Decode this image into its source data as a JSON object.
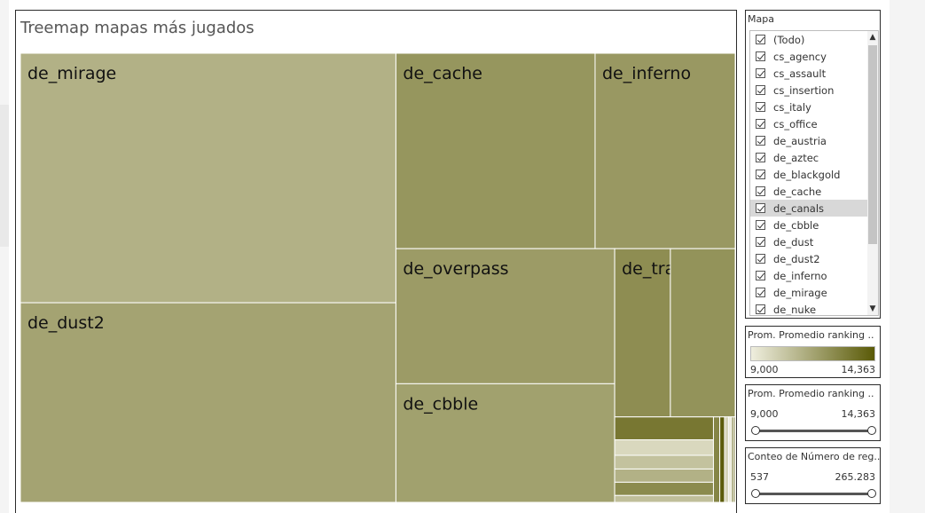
{
  "title": "Treemap mapas más jugados",
  "chart_data": {
    "type": "treemap",
    "title": "Treemap mapas más jugados",
    "size_measure": "Conteo de Número de registros",
    "color_measure": "Prom. Promedio ranking",
    "color_range": [
      9000,
      14363
    ],
    "labeled_items": [
      {
        "name": "de_mirage",
        "count": 65000,
        "avg_ranking": 11200
      },
      {
        "name": "de_dust2",
        "count": 52000,
        "avg_ranking": 11700
      },
      {
        "name": "de_cache",
        "count": 27000,
        "avg_ranking": 12200
      },
      {
        "name": "de_inferno",
        "count": 19000,
        "avg_ranking": 12100
      },
      {
        "name": "de_overpass",
        "count": 20500,
        "avg_ranking": 12000
      },
      {
        "name": "de_cbble",
        "count": 18000,
        "avg_ranking": 11800
      },
      {
        "name": "de_train",
        "count": 6500,
        "avg_ranking": 12500
      }
    ],
    "unlabeled_items": [
      {
        "count": 3300,
        "avg_ranking": 12300
      },
      {
        "count": 2500,
        "avg_ranking": 13300
      },
      {
        "count": 1700,
        "avg_ranking": 9800
      },
      {
        "count": 1500,
        "avg_ranking": 10600
      },
      {
        "count": 1450,
        "avg_ranking": 11200
      },
      {
        "count": 1450,
        "avg_ranking": 12600
      },
      {
        "count": 750,
        "avg_ranking": 10700
      },
      {
        "count": 600,
        "avg_ranking": 12800
      },
      {
        "count": 450,
        "avg_ranking": 14300
      },
      {
        "count": 400,
        "avg_ranking": 9900
      },
      {
        "count": 240,
        "avg_ranking": 9200
      },
      {
        "count": 200,
        "avg_ranking": 12100
      },
      {
        "count": 170,
        "avg_ranking": 12700
      }
    ]
  },
  "filter": {
    "title": "Mapa",
    "items": [
      "(Todo)",
      "cs_agency",
      "cs_assault",
      "cs_insertion",
      "cs_italy",
      "cs_office",
      "de_austria",
      "de_aztec",
      "de_blackgold",
      "de_cache",
      "de_canals",
      "de_cbble",
      "de_dust",
      "de_dust2",
      "de_inferno",
      "de_mirage",
      "de_nuke"
    ],
    "highlighted": "de_canals"
  },
  "color_legend": {
    "title": "Prom. Promedio ranking ..",
    "min": "9,000",
    "max": "14,363",
    "color_low": "#efeede",
    "color_high": "#5a5a07"
  },
  "range_filter_ranking": {
    "title": "Prom. Promedio ranking ..",
    "min": "9,000",
    "max": "14,363"
  },
  "range_filter_count": {
    "title": "Conteo de Número de reg..",
    "min": "537",
    "max": "265.283"
  }
}
